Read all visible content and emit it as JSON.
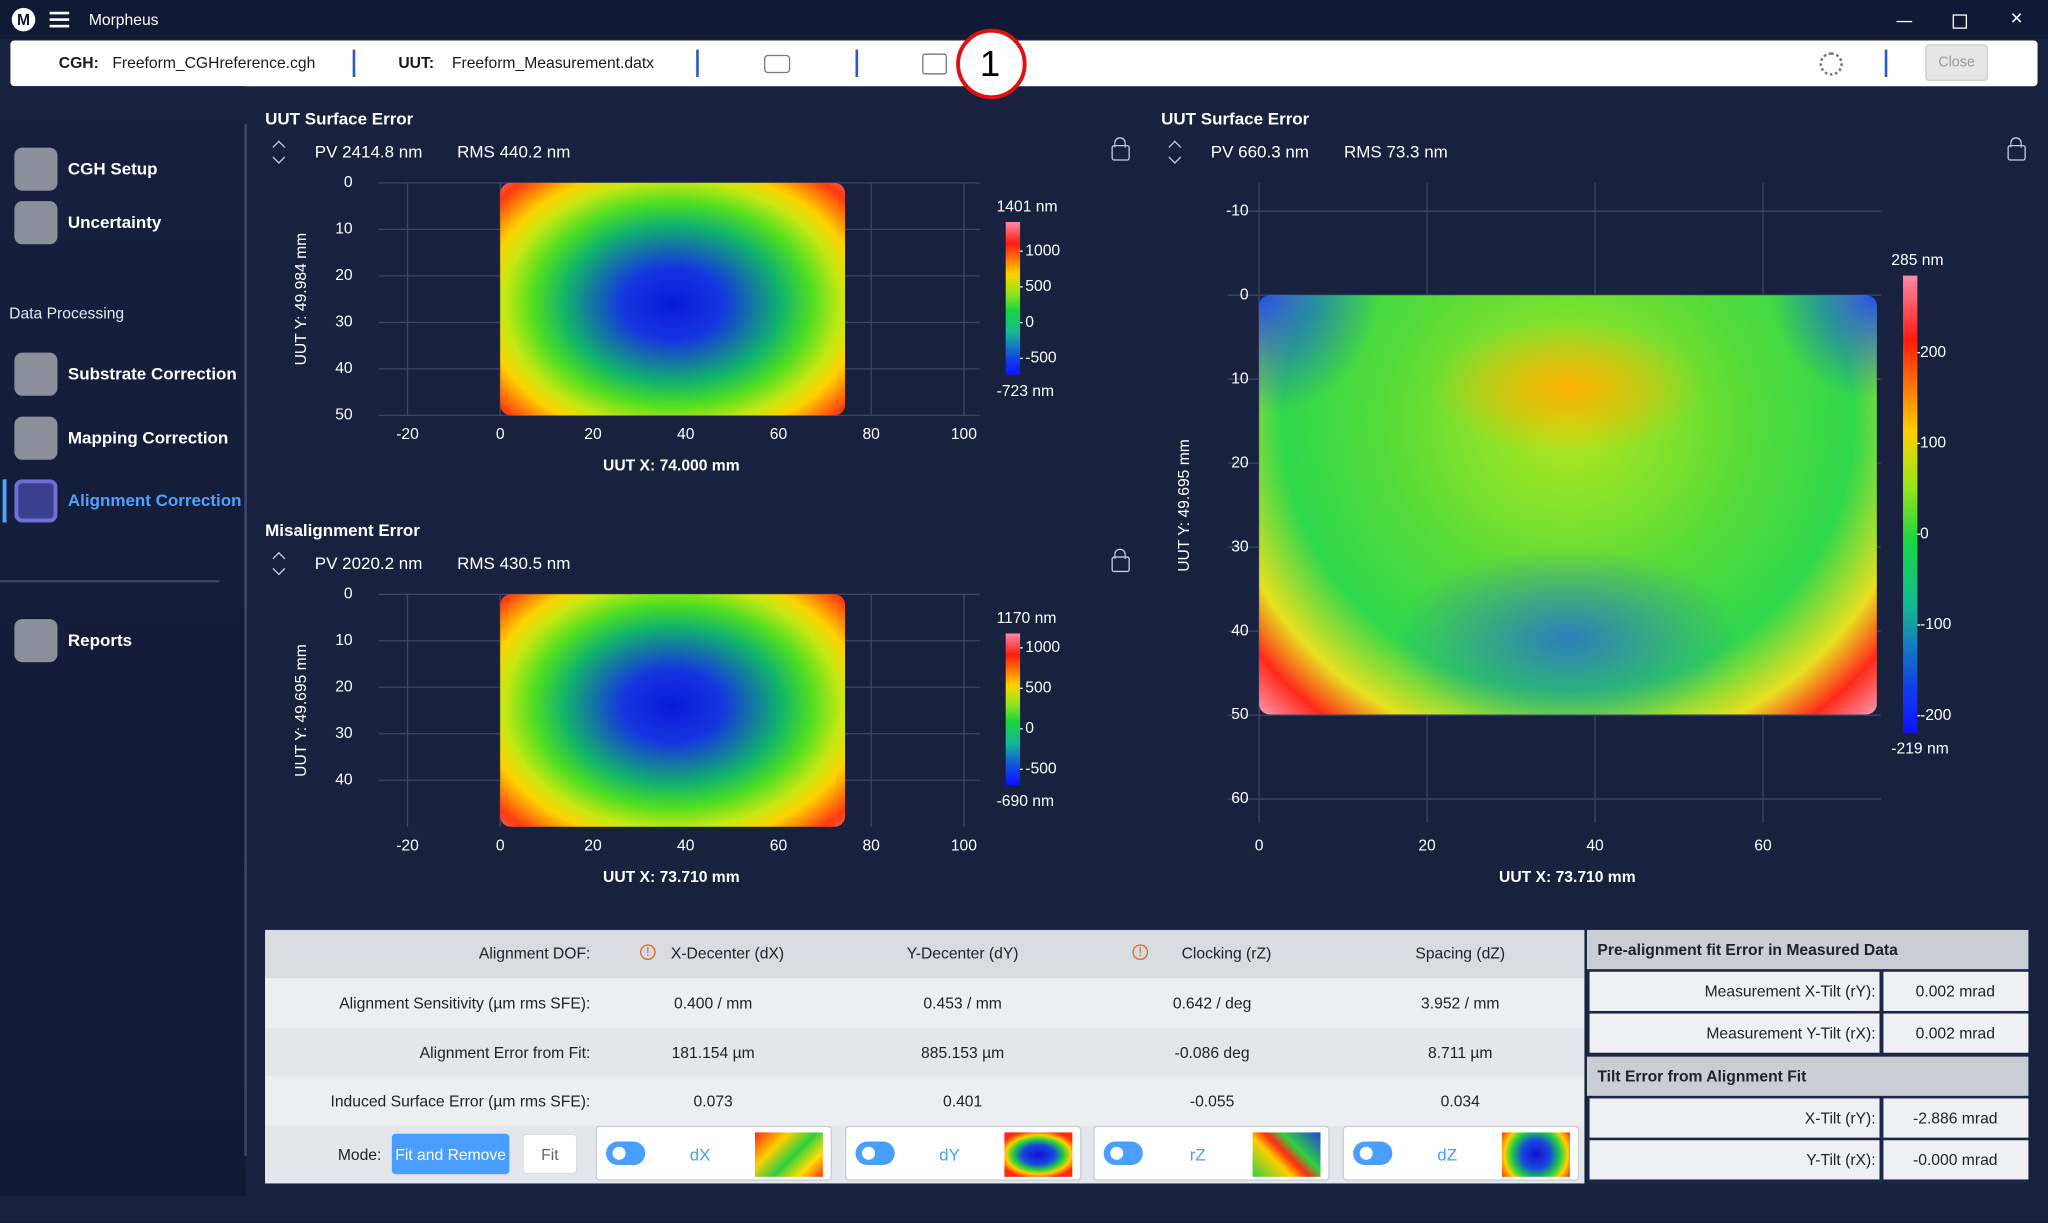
{
  "window": {
    "title": "Morpheus"
  },
  "toolbar": {
    "cgh_label": "CGH:",
    "cgh_value": "Freeform_CGHreference.cgh",
    "uut_label": "UUT:",
    "uut_value": "Freeform_Measurement.datx",
    "close": "Close",
    "callout": "1"
  },
  "sidebar": {
    "top_items": [
      "CGH Setup",
      "Uncertainty"
    ],
    "section": "Data Processing",
    "processing_items": [
      "Substrate Correction",
      "Mapping Correction",
      "Alignment Correction"
    ],
    "bottom_items": [
      "Reports"
    ]
  },
  "plots": [
    {
      "title": "UUT Surface Error",
      "pv": "PV 2414.8 nm",
      "rms": "RMS 440.2 nm",
      "xlabel": "UUT X: 74.000 mm",
      "ylabel": "UUT Y: 49.984 mm",
      "xticks": [
        -20,
        0,
        20,
        40,
        60,
        80,
        100
      ],
      "yticks": [
        0,
        10,
        20,
        30,
        40,
        50
      ],
      "colorbar": {
        "max": {
          "value": 1401,
          "label": "1401 nm"
        },
        "min": {
          "value": -723,
          "label": "-723 nm"
        },
        "ticks": [
          1000,
          500,
          0,
          -500
        ]
      }
    },
    {
      "title": "Misalignment Error",
      "pv": "PV 2020.2 nm",
      "rms": "RMS 430.5 nm",
      "xlabel": "UUT X: 73.710 mm",
      "ylabel": "UUT Y: 49.695 mm",
      "xticks": [
        -20,
        0,
        20,
        40,
        60,
        80,
        100
      ],
      "yticks": [
        0,
        10,
        20,
        30,
        40
      ],
      "colorbar": {
        "max": {
          "value": 1170,
          "label": "1170 nm"
        },
        "min": {
          "value": -690,
          "label": "-690 nm"
        },
        "ticks": [
          1000,
          500,
          0,
          -500
        ]
      }
    },
    {
      "title": "UUT Surface Error",
      "pv": "PV 660.3 nm",
      "rms": "RMS 73.3 nm",
      "xlabel": "UUT X: 73.710 mm",
      "ylabel": "UUT Y: 49.695 mm",
      "xticks": [
        0,
        20,
        40,
        60
      ],
      "yticks": [
        -10,
        0,
        10,
        20,
        30,
        40,
        50,
        60
      ],
      "colorbar": {
        "max": {
          "value": 285,
          "label": "285 nm"
        },
        "min": {
          "value": -219,
          "label": "-219 nm"
        },
        "ticks": [
          200,
          100,
          0,
          -100,
          -200
        ]
      }
    }
  ],
  "alignment_table": {
    "header": [
      "Alignment DOF:",
      "X-Decenter (dX)",
      "Y-Decenter (dY)",
      "Clocking (rZ)",
      "Spacing (dZ)"
    ],
    "rows": [
      [
        "Alignment Sensitivity (µm rms SFE):",
        "0.400 / mm",
        "0.453 / mm",
        "0.642 / deg",
        "3.952 / mm"
      ],
      [
        "Alignment Error from Fit:",
        "181.154 µm",
        "885.153 µm",
        "-0.086 deg",
        "8.711 µm"
      ],
      [
        "Induced Surface Error (µm rms SFE):",
        "0.073",
        "0.401",
        "-0.055",
        "0.034"
      ]
    ],
    "mode_label": "Mode:",
    "mode_buttons": [
      "Fit and Remove",
      "Fit"
    ],
    "toggles": [
      "dX",
      "dY",
      "rZ",
      "dZ"
    ]
  },
  "fit_panel": [
    {
      "title": "Pre-alignment fit Error in Measured Data",
      "rows": [
        [
          "Measurement X-Tilt (rY):",
          "0.002 mrad"
        ],
        [
          "Measurement Y-Tilt (rX):",
          "0.002 mrad"
        ]
      ]
    },
    {
      "title": "Tilt Error from Alignment Fit",
      "rows": [
        [
          "X-Tilt (rY):",
          "-2.886 mrad"
        ],
        [
          "Y-Tilt (rX):",
          "-0.000 mrad"
        ]
      ]
    }
  ]
}
